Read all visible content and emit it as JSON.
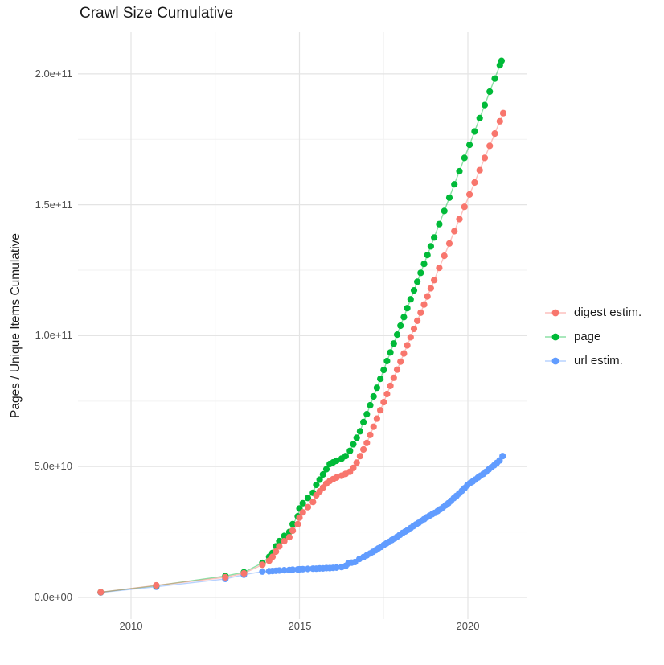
{
  "title": "Crawl Size Cumulative",
  "x_axis": {
    "ticks": [
      {
        "label": "2010",
        "value": 2010
      },
      {
        "label": "2015",
        "value": 2015
      },
      {
        "label": "2020",
        "value": 2020
      }
    ]
  },
  "y_axis": {
    "label": "Pages / Unique Items Cumulative",
    "ticks": [
      {
        "label": "2.0e+11",
        "value_billions": 200
      },
      {
        "label": "1.5e+11",
        "value_billions": 150
      },
      {
        "label": "1.0e+11",
        "value_billions": 100
      },
      {
        "label": "5.0e+10",
        "value_billions": 50
      },
      {
        "label": "0.0e+00",
        "value_billions": 0
      }
    ]
  },
  "legend": {
    "items": [
      {
        "label": "digest estim.",
        "color": "#F8766D"
      },
      {
        "label": "page",
        "color": "#00BA38"
      },
      {
        "label": "url estim.",
        "color": "#619CFF"
      }
    ]
  },
  "colors": {
    "grid_major": "#e4e4e4",
    "grid_minor": "#f2f2f2",
    "tick_text": "#4d4d4d",
    "text": "#1a1a1a"
  },
  "chart_data": {
    "type": "scatter",
    "title": "Crawl Size Cumulative",
    "xlabel": "",
    "ylabel": "Pages / Unique Items Cumulative",
    "x_unit": "year",
    "y_value_scale": 1000000000.0,
    "xlim": [
      2008.4,
      2021.8
    ],
    "ylim_billions": [
      -8,
      216
    ],
    "legend_position": "right",
    "grid": {
      "x_major": [
        2010,
        2015,
        2020
      ],
      "x_minor": [
        2012.5,
        2017.5
      ],
      "y_major": [
        0,
        50,
        100,
        150,
        200
      ],
      "y_minor": [
        25,
        75,
        125,
        175
      ]
    },
    "series": [
      {
        "name": "digest estim.",
        "color": "#F8766D",
        "points_unit_billions": true,
        "points": [
          [
            2009.1,
            2
          ],
          [
            2010.75,
            4.6
          ],
          [
            2012.8,
            7.7
          ],
          [
            2013.35,
            9.2
          ],
          [
            2013.9,
            12.5
          ],
          [
            2014.1,
            14
          ],
          [
            2014.2,
            15.5
          ],
          [
            2014.3,
            17.5
          ],
          [
            2014.4,
            19.5
          ],
          [
            2014.55,
            21.5
          ],
          [
            2014.7,
            23
          ],
          [
            2014.8,
            25.5
          ],
          [
            2014.95,
            28
          ],
          [
            2015.0,
            30.5
          ],
          [
            2015.1,
            32.5
          ],
          [
            2015.25,
            34.5
          ],
          [
            2015.4,
            36.5
          ],
          [
            2015.5,
            39
          ],
          [
            2015.6,
            40.5
          ],
          [
            2015.7,
            42
          ],
          [
            2015.8,
            43.5
          ],
          [
            2015.9,
            44.5
          ],
          [
            2016.0,
            45.2
          ],
          [
            2016.1,
            45.8
          ],
          [
            2016.25,
            46.5
          ],
          [
            2016.37,
            47.2
          ],
          [
            2016.5,
            48
          ],
          [
            2016.6,
            49.5
          ],
          [
            2016.7,
            51.5
          ],
          [
            2016.8,
            54
          ],
          [
            2016.9,
            56.5
          ],
          [
            2017.0,
            59
          ],
          [
            2017.1,
            62.1
          ],
          [
            2017.2,
            65.2
          ],
          [
            2017.3,
            68.3
          ],
          [
            2017.4,
            71.5
          ],
          [
            2017.5,
            74.6
          ],
          [
            2017.6,
            77.7
          ],
          [
            2017.7,
            80.8
          ],
          [
            2017.8,
            83.9
          ],
          [
            2017.9,
            87
          ],
          [
            2018.0,
            90.1
          ],
          [
            2018.1,
            93.2
          ],
          [
            2018.2,
            96.3
          ],
          [
            2018.3,
            99.4
          ],
          [
            2018.4,
            102.6
          ],
          [
            2018.5,
            105.7
          ],
          [
            2018.6,
            108.8
          ],
          [
            2018.7,
            111.9
          ],
          [
            2018.8,
            115
          ],
          [
            2018.9,
            118.1
          ],
          [
            2019.0,
            121.2
          ],
          [
            2019.15,
            125.9
          ],
          [
            2019.3,
            130.5
          ],
          [
            2019.45,
            135.2
          ],
          [
            2019.6,
            139.9
          ],
          [
            2019.75,
            144.5
          ],
          [
            2019.9,
            149.2
          ],
          [
            2020.05,
            153.9
          ],
          [
            2020.2,
            158.5
          ],
          [
            2020.35,
            163.2
          ],
          [
            2020.5,
            167.9
          ],
          [
            2020.65,
            172.5
          ],
          [
            2020.8,
            177.2
          ],
          [
            2020.95,
            181.9
          ],
          [
            2021.05,
            185
          ]
        ]
      },
      {
        "name": "page",
        "color": "#00BA38",
        "points_unit_billions": true,
        "points": [
          [
            2009.1,
            2
          ],
          [
            2010.75,
            4.5
          ],
          [
            2012.8,
            8.2
          ],
          [
            2013.35,
            9.6
          ],
          [
            2013.9,
            13.2
          ],
          [
            2014.1,
            15.5
          ],
          [
            2014.2,
            17
          ],
          [
            2014.3,
            19.5
          ],
          [
            2014.4,
            21.5
          ],
          [
            2014.55,
            23.5
          ],
          [
            2014.7,
            25
          ],
          [
            2014.8,
            28
          ],
          [
            2014.95,
            31
          ],
          [
            2015.0,
            34
          ],
          [
            2015.1,
            36
          ],
          [
            2015.25,
            38
          ],
          [
            2015.4,
            40
          ],
          [
            2015.5,
            43
          ],
          [
            2015.6,
            45
          ],
          [
            2015.7,
            47
          ],
          [
            2015.8,
            49
          ],
          [
            2015.9,
            51
          ],
          [
            2016.0,
            51.6
          ],
          [
            2016.1,
            52.2
          ],
          [
            2016.25,
            53
          ],
          [
            2016.37,
            54
          ],
          [
            2016.5,
            56
          ],
          [
            2016.6,
            58.5
          ],
          [
            2016.7,
            61
          ],
          [
            2016.8,
            63.5
          ],
          [
            2016.9,
            67
          ],
          [
            2017.0,
            70
          ],
          [
            2017.1,
            73.4
          ],
          [
            2017.2,
            76.8
          ],
          [
            2017.3,
            80.1
          ],
          [
            2017.4,
            83.5
          ],
          [
            2017.5,
            86.9
          ],
          [
            2017.6,
            90.3
          ],
          [
            2017.7,
            93.6
          ],
          [
            2017.8,
            97
          ],
          [
            2017.9,
            100.4
          ],
          [
            2018.0,
            103.8
          ],
          [
            2018.1,
            107.1
          ],
          [
            2018.2,
            110.5
          ],
          [
            2018.3,
            113.9
          ],
          [
            2018.4,
            117.3
          ],
          [
            2018.5,
            120.6
          ],
          [
            2018.6,
            124
          ],
          [
            2018.7,
            127.4
          ],
          [
            2018.8,
            130.8
          ],
          [
            2018.9,
            134.1
          ],
          [
            2019.0,
            137.5
          ],
          [
            2019.15,
            142.6
          ],
          [
            2019.3,
            147.6
          ],
          [
            2019.45,
            152.7
          ],
          [
            2019.6,
            157.8
          ],
          [
            2019.75,
            162.8
          ],
          [
            2019.9,
            167.9
          ],
          [
            2020.05,
            172.9
          ],
          [
            2020.2,
            178
          ],
          [
            2020.35,
            183.1
          ],
          [
            2020.5,
            188.1
          ],
          [
            2020.65,
            193.2
          ],
          [
            2020.8,
            198.2
          ],
          [
            2020.95,
            203.3
          ],
          [
            2021.0,
            205
          ]
        ]
      },
      {
        "name": "url estim.",
        "color": "#619CFF",
        "points_unit_billions": true,
        "points": [
          [
            2009.1,
            1.9
          ],
          [
            2010.75,
            4.1
          ],
          [
            2012.8,
            7.1
          ],
          [
            2013.35,
            8.7
          ],
          [
            2013.9,
            9.9
          ],
          [
            2014.1,
            10
          ],
          [
            2014.2,
            10.1
          ],
          [
            2014.3,
            10.2
          ],
          [
            2014.4,
            10.3
          ],
          [
            2014.55,
            10.4
          ],
          [
            2014.7,
            10.5
          ],
          [
            2014.8,
            10.6
          ],
          [
            2014.95,
            10.7
          ],
          [
            2015.0,
            10.75
          ],
          [
            2015.1,
            10.8
          ],
          [
            2015.25,
            10.9
          ],
          [
            2015.4,
            11
          ],
          [
            2015.5,
            11
          ],
          [
            2015.6,
            11.1
          ],
          [
            2015.7,
            11.1
          ],
          [
            2015.8,
            11.2
          ],
          [
            2015.9,
            11.2
          ],
          [
            2016.0,
            11.3
          ],
          [
            2016.1,
            11.4
          ],
          [
            2016.25,
            11.6
          ],
          [
            2016.37,
            12
          ],
          [
            2016.45,
            13
          ],
          [
            2016.55,
            13.3
          ],
          [
            2016.65,
            13.5
          ],
          [
            2016.78,
            14.7
          ],
          [
            2016.9,
            15.4
          ],
          [
            2017.0,
            16.1
          ],
          [
            2017.1,
            16.8
          ],
          [
            2017.18,
            17.4
          ],
          [
            2017.26,
            18
          ],
          [
            2017.34,
            18.7
          ],
          [
            2017.42,
            19.3
          ],
          [
            2017.5,
            20
          ],
          [
            2017.58,
            20.6
          ],
          [
            2017.66,
            21.2
          ],
          [
            2017.74,
            21.9
          ],
          [
            2017.82,
            22.5
          ],
          [
            2017.9,
            23.2
          ],
          [
            2017.98,
            23.9
          ],
          [
            2018.06,
            24.6
          ],
          [
            2018.14,
            25.2
          ],
          [
            2018.22,
            25.8
          ],
          [
            2018.3,
            26.5
          ],
          [
            2018.38,
            27.2
          ],
          [
            2018.46,
            27.9
          ],
          [
            2018.54,
            28.5
          ],
          [
            2018.62,
            29.2
          ],
          [
            2018.7,
            29.9
          ],
          [
            2018.78,
            30.6
          ],
          [
            2018.86,
            31.2
          ],
          [
            2018.94,
            31.8
          ],
          [
            2019.02,
            32.3
          ],
          [
            2019.1,
            33
          ],
          [
            2019.18,
            33.7
          ],
          [
            2019.26,
            34.4
          ],
          [
            2019.34,
            35.2
          ],
          [
            2019.42,
            36
          ],
          [
            2019.5,
            36.9
          ],
          [
            2019.58,
            37.9
          ],
          [
            2019.66,
            38.8
          ],
          [
            2019.74,
            39.7
          ],
          [
            2019.82,
            40.7
          ],
          [
            2019.9,
            41.7
          ],
          [
            2019.98,
            42.8
          ],
          [
            2020.06,
            43.6
          ],
          [
            2020.14,
            44.3
          ],
          [
            2020.22,
            45
          ],
          [
            2020.3,
            45.8
          ],
          [
            2020.38,
            46.5
          ],
          [
            2020.46,
            47.2
          ],
          [
            2020.54,
            48
          ],
          [
            2020.62,
            48.9
          ],
          [
            2020.7,
            49.7
          ],
          [
            2020.78,
            50.5
          ],
          [
            2020.86,
            51.4
          ],
          [
            2020.94,
            52.3
          ],
          [
            2021.03,
            54
          ]
        ]
      }
    ]
  }
}
